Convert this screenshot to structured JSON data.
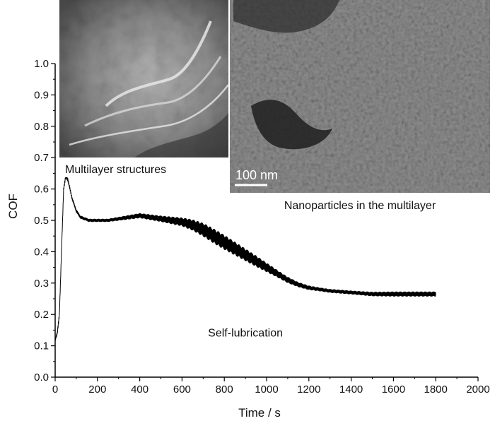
{
  "chart_data": {
    "type": "line",
    "title": "",
    "xlabel": "Time / s",
    "ylabel": "COF",
    "xlim": [
      0,
      2000
    ],
    "ylim": [
      0.0,
      1.0
    ],
    "x_ticks": [
      0,
      200,
      400,
      600,
      800,
      1000,
      1200,
      1400,
      1600,
      1800,
      2000
    ],
    "y_ticks": [
      "0.0",
      "0.1",
      "0.2",
      "0.3",
      "0.4",
      "0.5",
      "0.6",
      "0.7",
      "0.8",
      "0.9",
      "1.0"
    ],
    "grid": false,
    "series": [
      {
        "color": "#000000",
        "x": [
          0,
          10,
          20,
          30,
          40,
          50,
          60,
          70,
          80,
          90,
          100,
          120,
          140,
          160,
          180,
          200,
          250,
          300,
          350,
          400,
          450,
          500,
          550,
          600,
          650,
          700,
          750,
          800,
          850,
          900,
          950,
          1000,
          1050,
          1100,
          1150,
          1200,
          1250,
          1300,
          1400,
          1500,
          1600,
          1700,
          1800
        ],
        "y": [
          0.12,
          0.14,
          0.2,
          0.4,
          0.6,
          0.64,
          0.63,
          0.6,
          0.57,
          0.55,
          0.53,
          0.51,
          0.505,
          0.5,
          0.5,
          0.5,
          0.5,
          0.505,
          0.51,
          0.515,
          0.51,
          0.505,
          0.5,
          0.495,
          0.485,
          0.47,
          0.45,
          0.43,
          0.41,
          0.39,
          0.37,
          0.35,
          0.33,
          0.31,
          0.295,
          0.285,
          0.28,
          0.275,
          0.27,
          0.265,
          0.265,
          0.265,
          0.265
        ],
        "noise": [
          0.005,
          0.005,
          0.005,
          0.005,
          0.006,
          0.006,
          0.006,
          0.005,
          0.005,
          0.005,
          0.005,
          0.005,
          0.005,
          0.005,
          0.005,
          0.005,
          0.005,
          0.006,
          0.007,
          0.008,
          0.009,
          0.01,
          0.012,
          0.014,
          0.018,
          0.022,
          0.024,
          0.024,
          0.022,
          0.02,
          0.018,
          0.015,
          0.012,
          0.01,
          0.008,
          0.007,
          0.006,
          0.006,
          0.006,
          0.007,
          0.008,
          0.008,
          0.008
        ]
      }
    ],
    "annotations": [
      {
        "text": "Self-lubrication",
        "x": 900,
        "y": 0.13
      }
    ]
  },
  "insets": {
    "left_caption": "Multilayer structures",
    "right_caption": "Nanoparticles in the multilayer",
    "scale_bar": "100 nm"
  }
}
